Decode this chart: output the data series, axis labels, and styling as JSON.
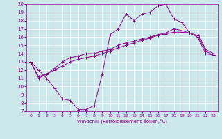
{
  "xlabel": "Windchill (Refroidissement éolien,°C)",
  "background_color": "#cde8eb",
  "line_color": "#880088",
  "xlim": [
    -0.5,
    23.5
  ],
  "ylim": [
    7,
    20
  ],
  "yticks": [
    7,
    8,
    9,
    10,
    11,
    12,
    13,
    14,
    15,
    16,
    17,
    18,
    19,
    20
  ],
  "xticks": [
    0,
    1,
    2,
    3,
    4,
    5,
    6,
    7,
    8,
    9,
    10,
    11,
    12,
    13,
    14,
    15,
    16,
    17,
    18,
    19,
    20,
    21,
    22,
    23
  ],
  "series1_x": [
    0,
    1,
    2,
    3,
    4,
    5,
    6,
    7,
    8,
    9,
    10,
    11,
    12,
    13,
    14,
    15,
    16,
    17,
    18,
    19,
    20,
    21,
    22,
    23
  ],
  "series1_y": [
    13.0,
    12.0,
    11.0,
    9.8,
    8.5,
    8.3,
    7.2,
    7.2,
    7.7,
    11.5,
    16.3,
    17.0,
    18.8,
    18.0,
    18.8,
    19.0,
    19.8,
    20.0,
    18.2,
    17.8,
    16.5,
    16.2,
    14.3,
    13.8
  ],
  "series2_x": [
    0,
    1,
    2,
    3,
    4,
    5,
    6,
    7,
    8,
    9,
    10,
    11,
    12,
    13,
    14,
    15,
    16,
    17,
    18,
    19,
    20,
    21,
    22,
    23
  ],
  "series2_y": [
    13.0,
    11.0,
    11.5,
    12.0,
    12.5,
    13.0,
    13.3,
    13.5,
    13.7,
    14.0,
    14.3,
    14.7,
    15.0,
    15.3,
    15.6,
    15.9,
    16.2,
    16.4,
    16.6,
    16.6,
    16.5,
    16.0,
    14.0,
    13.8
  ],
  "series3_x": [
    0,
    1,
    2,
    3,
    4,
    5,
    6,
    7,
    8,
    9,
    10,
    11,
    12,
    13,
    14,
    15,
    16,
    17,
    18,
    19,
    20,
    21,
    22,
    23
  ],
  "series3_y": [
    13.0,
    11.2,
    11.5,
    12.2,
    13.0,
    13.5,
    13.7,
    14.0,
    14.0,
    14.3,
    14.5,
    15.0,
    15.3,
    15.5,
    15.8,
    16.0,
    16.3,
    16.5,
    17.0,
    16.8,
    16.5,
    16.5,
    14.5,
    14.0
  ],
  "marker": "+"
}
